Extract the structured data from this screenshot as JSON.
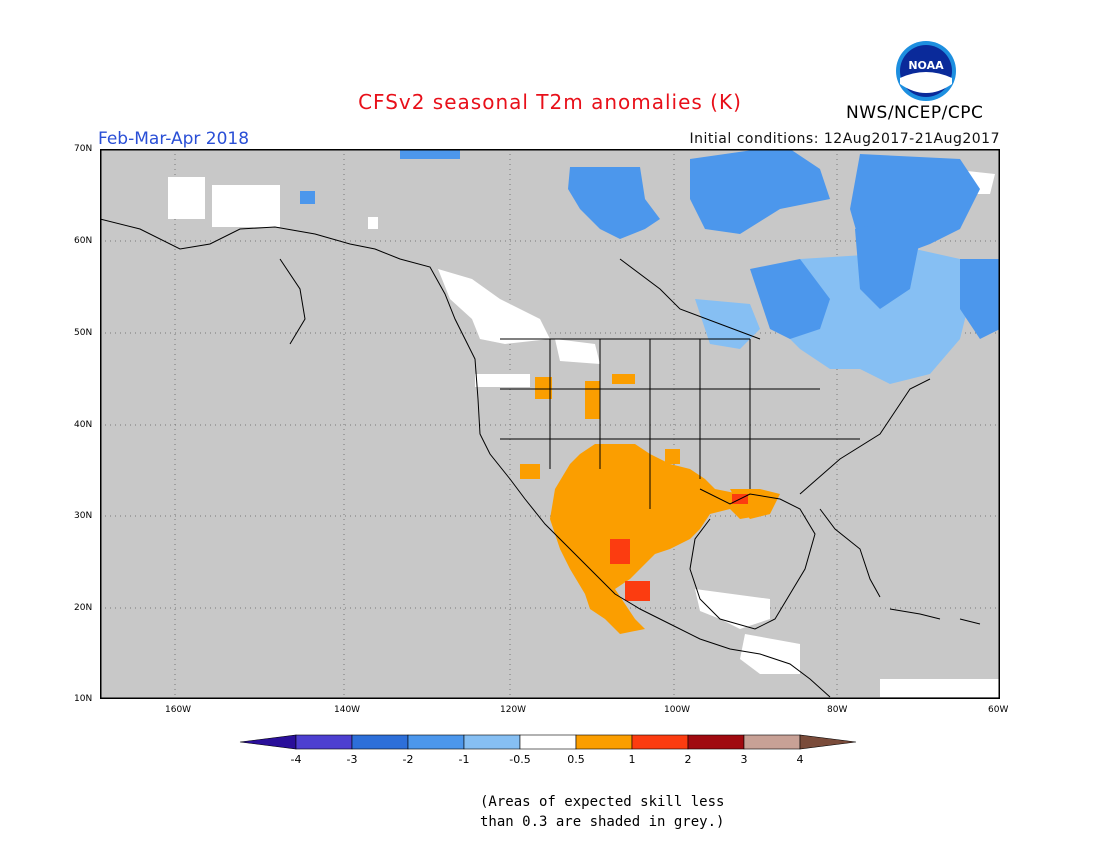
{
  "title": "CFSv2 seasonal T2m anomalies (K)",
  "season": "Feb-Mar-Apr 2018",
  "initial_conditions": "Initial conditions: 12Aug2017-21Aug2017",
  "agency": "NWS/NCEP/CPC",
  "logo_text": "NOAA",
  "lat_labels": [
    "70N",
    "60N",
    "50N",
    "40N",
    "30N",
    "20N",
    "10N"
  ],
  "lon_labels": [
    "160W",
    "140W",
    "120W",
    "100W",
    "80W",
    "60W"
  ],
  "colorbar": {
    "labels": [
      "-4",
      "-3",
      "-2",
      "-1",
      "-0.5",
      "0.5",
      "1",
      "2",
      "3",
      "4"
    ],
    "colors": [
      "#2a0f9a",
      "#4d3fd0",
      "#2d6fd9",
      "#4c97ec",
      "#86bff3",
      "#ffffff",
      "#fb9e00",
      "#fc3c10",
      "#a00a10",
      "#c8a196",
      "#7a4b3a"
    ]
  },
  "note_line1": "(Areas of expected skill less",
  "note_line2": "than 0.3 are shaded in grey.)",
  "colors": {
    "land_grey": "#c8c8c8",
    "title": "#e8101a",
    "season": "#2a4fd6"
  }
}
